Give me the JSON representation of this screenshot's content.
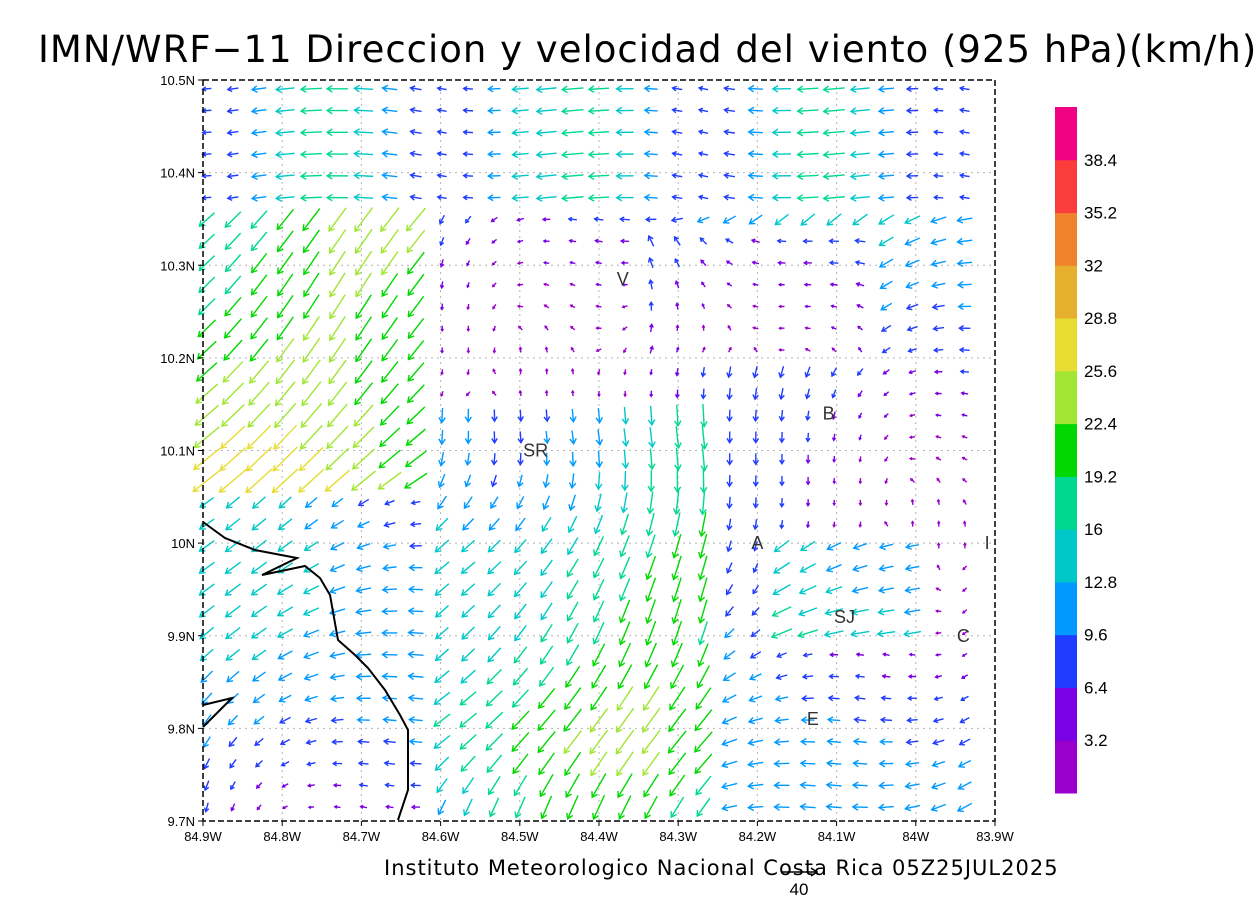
{
  "title": "IMN/WRF−11 Direccion y velocidad del viento (925 hPa)(km/h)",
  "footer": "Instituto Meteorologico Nacional Costa Rica 05Z25JUL2025",
  "axes": {
    "x_ticks": [
      "84.9W",
      "84.8W",
      "84.7W",
      "84.6W",
      "84.5W",
      "84.4W",
      "84.3W",
      "84.2W",
      "84.1W",
      "84W",
      "83.9W"
    ],
    "y_ticks": [
      "9.7N",
      "9.8N",
      "9.9N",
      "10N",
      "10.1N",
      "10.2N",
      "10.3N",
      "10.4N",
      "10.5N"
    ],
    "lon_range": [
      -84.9,
      -83.9
    ],
    "lat_range": [
      9.7,
      10.5
    ]
  },
  "reference_vector": {
    "label": "40",
    "speed_kmh": 40
  },
  "colorbar": {
    "labels": [
      "3.2",
      "6.4",
      "9.6",
      "12.8",
      "16",
      "19.2",
      "22.4",
      "25.6",
      "28.8",
      "32",
      "35.2",
      "38.4"
    ],
    "colors": [
      "#9a00cc",
      "#7a00e6",
      "#1f3cff",
      "#0099ff",
      "#00c8c8",
      "#00d890",
      "#00d800",
      "#a0e632",
      "#e6dc32",
      "#e6af2d",
      "#f0822d",
      "#fa3c3c",
      "#f00082"
    ]
  },
  "places": [
    {
      "label": "V",
      "lon": -84.37,
      "lat": 10.285
    },
    {
      "label": "B",
      "lon": -84.11,
      "lat": 10.14
    },
    {
      "label": "SR",
      "lon": -84.48,
      "lat": 10.1
    },
    {
      "label": "A",
      "lon": -84.2,
      "lat": 10.0
    },
    {
      "label": "I",
      "lon": -83.91,
      "lat": 10.0
    },
    {
      "label": "SJ",
      "lon": -84.09,
      "lat": 9.92
    },
    {
      "label": "C",
      "lon": -83.94,
      "lat": 9.9
    },
    {
      "label": "E",
      "lon": -84.13,
      "lat": 9.81
    }
  ]
}
